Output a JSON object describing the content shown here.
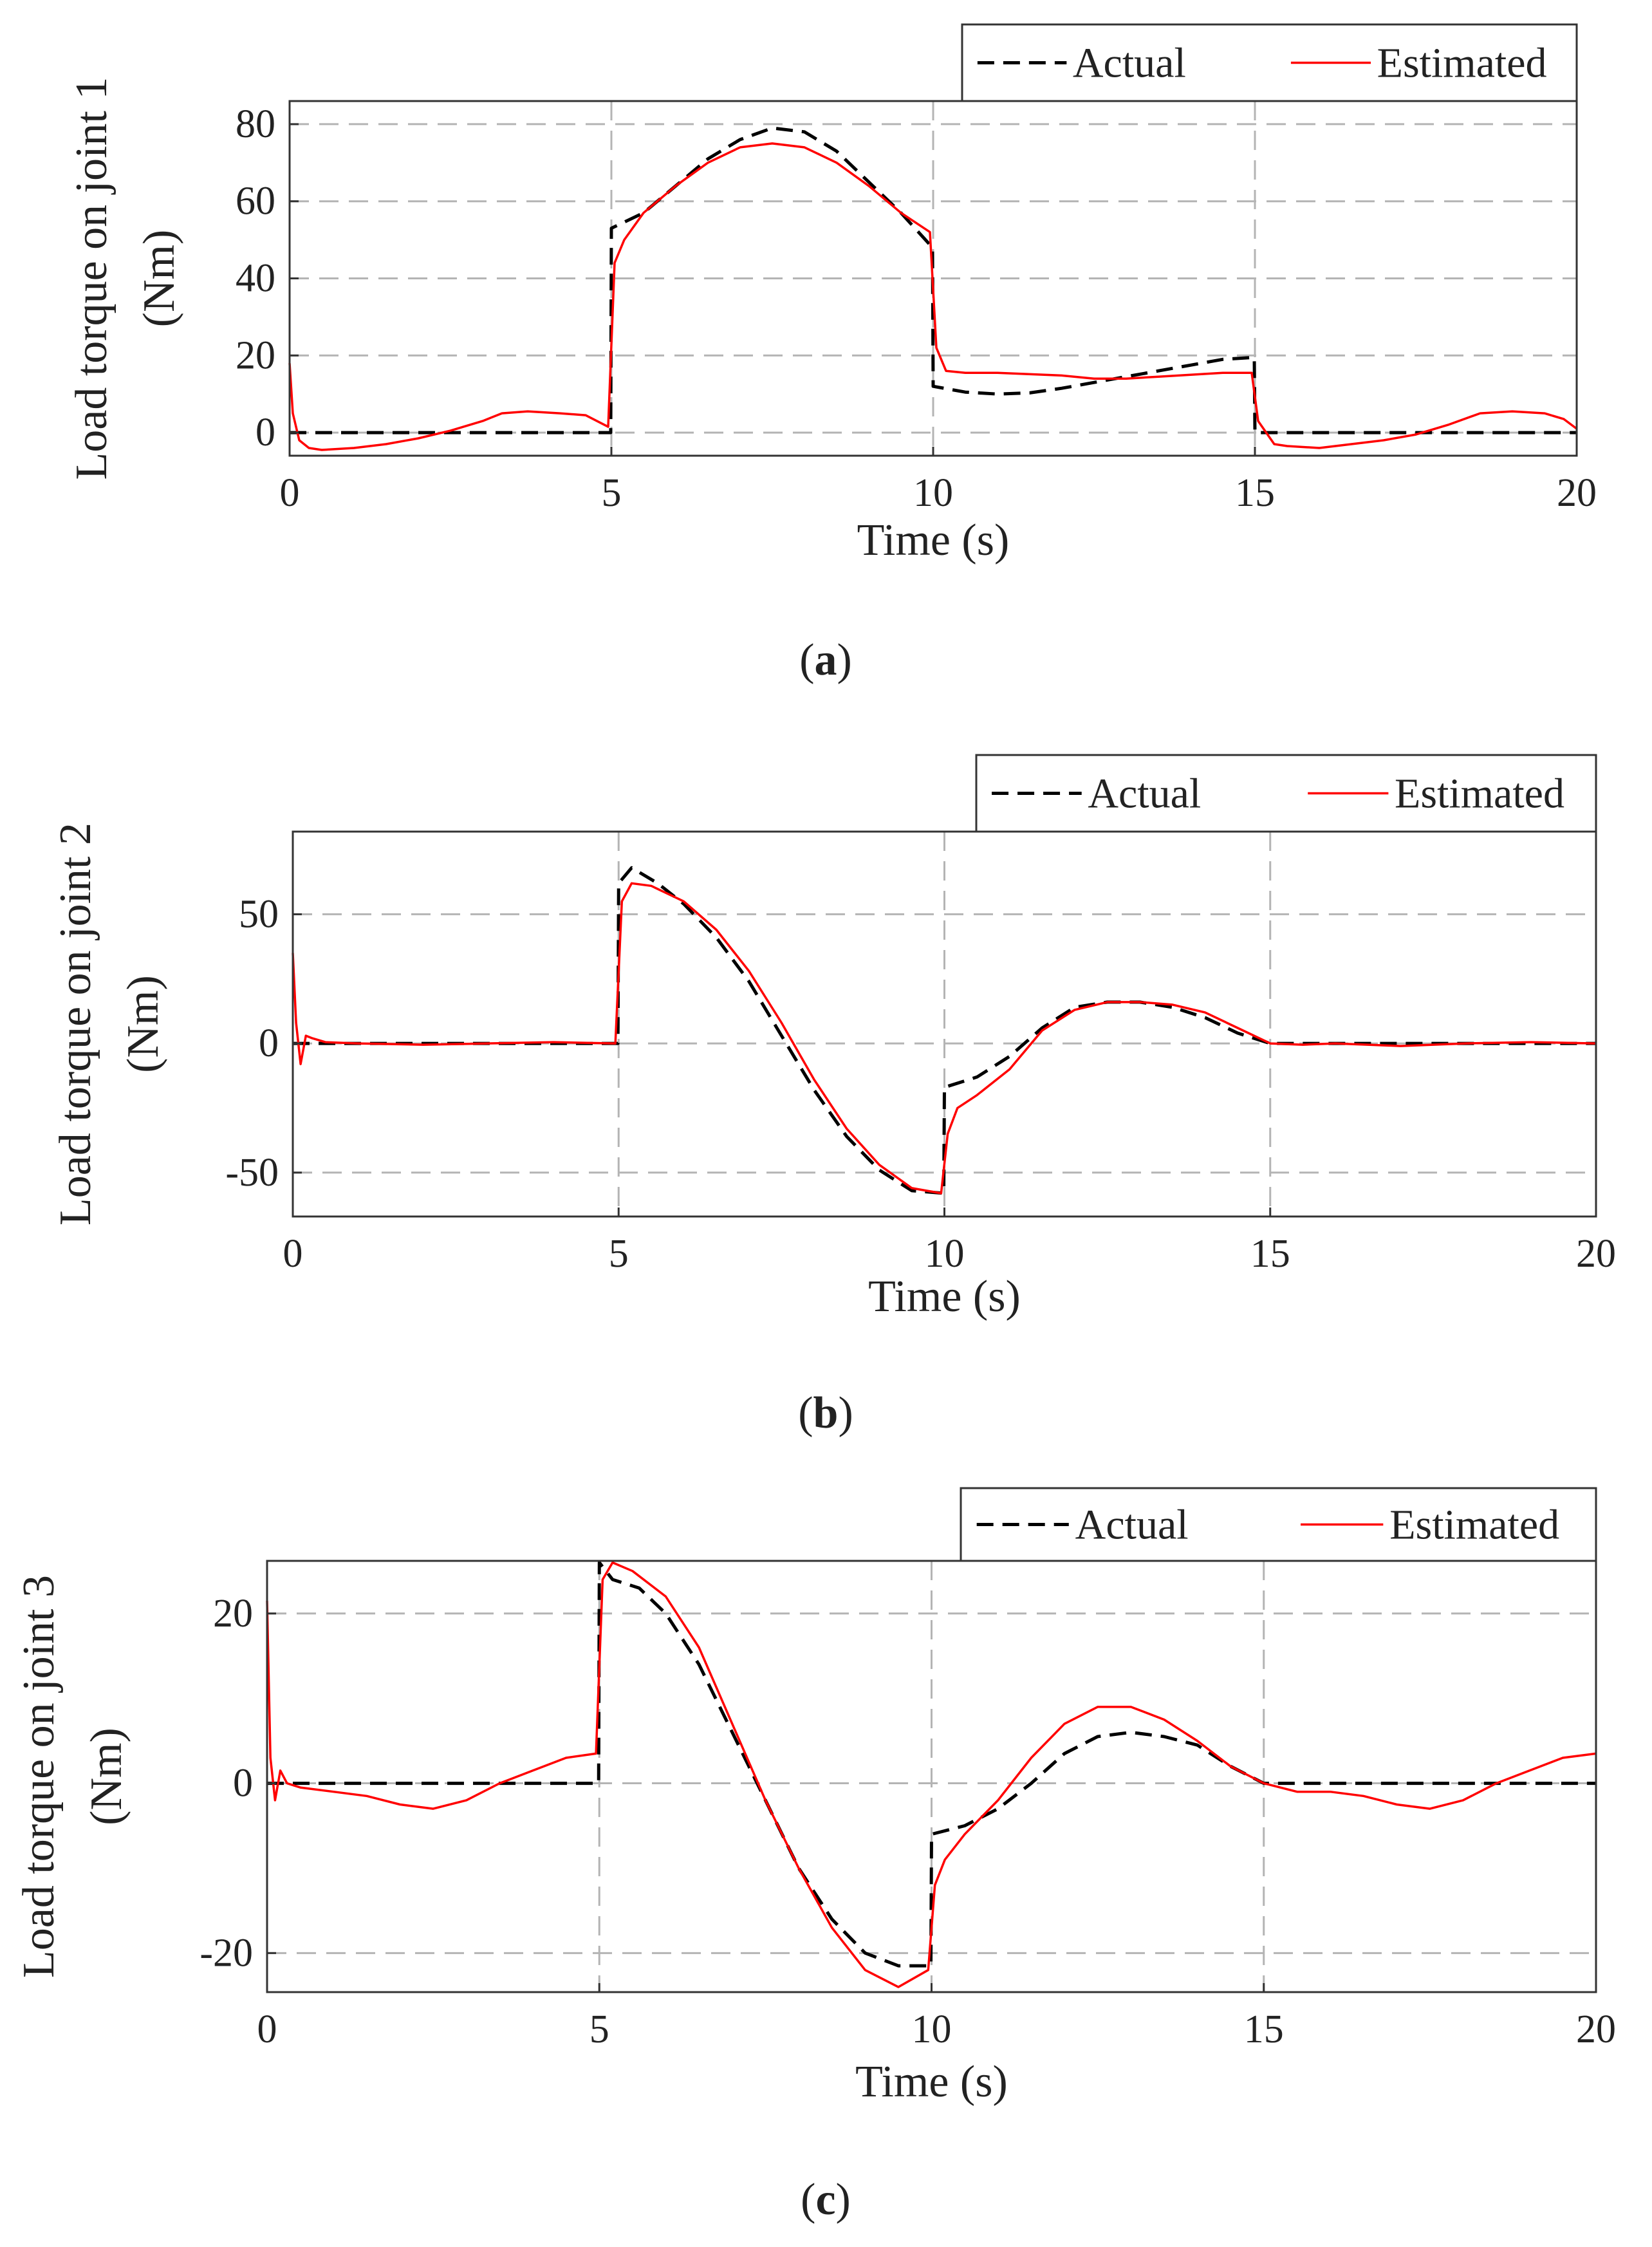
{
  "chart_data": [
    {
      "type": "line",
      "panel": "a",
      "caption_letter": "a",
      "xlabel": "Time (s)",
      "ylabel": [
        "Load torque on joint 1",
        "(Nm)"
      ],
      "xlim": [
        0,
        20
      ],
      "ylim": [
        -6,
        86
      ],
      "xticks": [
        0,
        5,
        10,
        15,
        20
      ],
      "yticks": [
        0,
        20,
        40,
        60,
        80
      ],
      "grid": true,
      "legend_position": "top-right, above axes",
      "series": [
        {
          "name": "Actual",
          "color": "#000000",
          "style": "dashed",
          "x": [
            0,
            4.99,
            5.0,
            5.5,
            6.0,
            6.5,
            7.0,
            7.5,
            8.0,
            8.5,
            9.0,
            9.5,
            9.99,
            10.0,
            10.5,
            11.0,
            11.5,
            12.0,
            12.5,
            13.0,
            13.5,
            14.0,
            14.5,
            14.99,
            15.0,
            20
          ],
          "y": [
            0,
            0,
            53,
            57,
            64,
            71,
            76,
            79,
            78,
            73,
            65,
            57,
            48,
            12,
            10.5,
            10,
            10.3,
            11.5,
            13,
            14.5,
            16,
            17.5,
            19,
            19.5,
            0,
            0
          ]
        },
        {
          "name": "Estimated",
          "color": "#ff0000",
          "style": "solid",
          "x": [
            0,
            0.05,
            0.15,
            0.3,
            0.5,
            1.0,
            1.5,
            2.0,
            2.5,
            3.0,
            3.3,
            3.7,
            4.2,
            4.6,
            4.95,
            5.05,
            5.2,
            5.5,
            6.0,
            6.5,
            7.0,
            7.5,
            8.0,
            8.5,
            9.0,
            9.5,
            9.95,
            10.05,
            10.2,
            10.5,
            11.0,
            12.0,
            12.5,
            13.0,
            13.5,
            14.0,
            14.5,
            14.95,
            15.05,
            15.3,
            15.5,
            16.0,
            16.5,
            17.0,
            17.5,
            18.0,
            18.5,
            19.0,
            19.5,
            19.8,
            20.0
          ],
          "y": [
            18,
            5,
            -2,
            -4,
            -4.5,
            -4,
            -3,
            -1.5,
            0.5,
            3,
            5,
            5.5,
            5,
            4.5,
            1.5,
            44,
            50,
            57,
            64,
            70,
            74,
            75,
            74,
            70,
            64,
            57,
            52,
            22,
            16,
            15.5,
            15.5,
            14.8,
            14,
            14,
            14.5,
            15,
            15.5,
            15.5,
            3,
            -3,
            -3.5,
            -4,
            -3,
            -2,
            -0.5,
            2,
            5,
            5.5,
            5,
            3.5,
            1
          ]
        }
      ]
    },
    {
      "type": "line",
      "panel": "b",
      "caption_letter": "b",
      "xlabel": "Time (s)",
      "ylabel": [
        "Load torque on joint 2",
        "(Nm)"
      ],
      "xlim": [
        0,
        20
      ],
      "ylim": [
        -67,
        82
      ],
      "xticks": [
        0,
        5,
        10,
        15,
        20
      ],
      "yticks": [
        -50,
        0,
        50
      ],
      "grid": true,
      "legend_position": "top-right, above axes",
      "series": [
        {
          "name": "Actual",
          "color": "#000000",
          "style": "dashed",
          "x": [
            0,
            4.99,
            5.0,
            5.2,
            5.6,
            6.0,
            6.5,
            7.0,
            7.5,
            8.0,
            8.5,
            9.0,
            9.5,
            9.99,
            10.0,
            10.5,
            11.0,
            11.5,
            12.0,
            12.5,
            13.0,
            13.5,
            14.0,
            14.5,
            15.0,
            20
          ],
          "y": [
            0,
            0,
            62,
            68,
            62,
            54,
            41,
            24,
            3,
            -18,
            -36,
            -49,
            -57,
            -58,
            -17,
            -13,
            -5,
            6,
            14,
            16,
            16,
            14,
            10,
            4,
            0,
            0
          ]
        },
        {
          "name": "Estimated",
          "color": "#ff0000",
          "style": "solid",
          "x": [
            0,
            0.05,
            0.12,
            0.2,
            0.3,
            0.5,
            1.0,
            2.0,
            3.0,
            4.0,
            4.95,
            5.05,
            5.2,
            5.5,
            6.0,
            6.5,
            7.0,
            7.5,
            8.0,
            8.5,
            9.0,
            9.5,
            9.95,
            10.05,
            10.2,
            10.5,
            11.0,
            11.5,
            12.0,
            12.5,
            13.0,
            13.5,
            14.0,
            14.5,
            15.0,
            15.5,
            16.0,
            17.0,
            18.0,
            19.0,
            20.0
          ],
          "y": [
            35,
            8,
            -8,
            3,
            2,
            0.5,
            0,
            -0.5,
            0,
            0.5,
            0,
            55,
            62,
            61,
            55,
            44,
            28,
            8,
            -14,
            -33,
            -47,
            -56,
            -58,
            -35,
            -25,
            -20,
            -10,
            5,
            13,
            16,
            16,
            15,
            12,
            6,
            0,
            -0.5,
            0,
            -1,
            0,
            0.5,
            0
          ]
        }
      ]
    },
    {
      "type": "line",
      "panel": "c",
      "caption_letter": "c",
      "xlabel": "Time (s)",
      "ylabel": [
        "Load torque on joint 3",
        "(Nm)"
      ],
      "xlim": [
        0,
        20
      ],
      "ylim": [
        -24.6,
        26.2
      ],
      "xticks": [
        0,
        5,
        10,
        15,
        20
      ],
      "yticks": [
        -20,
        0,
        20
      ],
      "grid": true,
      "legend_position": "top-right, above axes",
      "series": [
        {
          "name": "Actual",
          "color": "#000000",
          "style": "dashed",
          "x": [
            0,
            4.99,
            5.0,
            5.2,
            5.6,
            6.0,
            6.5,
            7.0,
            7.5,
            8.0,
            8.5,
            9.0,
            9.5,
            9.99,
            10.0,
            10.5,
            11.0,
            11.5,
            12.0,
            12.5,
            13.0,
            13.5,
            14.0,
            14.5,
            15.0,
            20
          ],
          "y": [
            0,
            0,
            26,
            24,
            23,
            20,
            14,
            6,
            -2,
            -10,
            -16,
            -20,
            -21.5,
            -21.5,
            -6,
            -5,
            -3,
            0,
            3.5,
            5.5,
            6,
            5.5,
            4.5,
            2,
            0,
            0
          ]
        },
        {
          "name": "Estimated",
          "color": "#ff0000",
          "style": "solid",
          "x": [
            0,
            0.05,
            0.12,
            0.2,
            0.3,
            0.5,
            1.0,
            1.5,
            2.0,
            2.5,
            3.0,
            3.5,
            4.0,
            4.5,
            4.95,
            5.05,
            5.2,
            5.5,
            6.0,
            6.5,
            7.0,
            7.5,
            8.0,
            8.5,
            9.0,
            9.5,
            9.95,
            10.05,
            10.2,
            10.5,
            11.0,
            11.5,
            12.0,
            12.5,
            13.0,
            13.5,
            14.0,
            14.5,
            15.0,
            15.5,
            16.0,
            16.5,
            17.0,
            17.5,
            18.0,
            18.5,
            19.0,
            19.5,
            20.0
          ],
          "y": [
            21.5,
            3,
            -2,
            1.5,
            0,
            -0.5,
            -1,
            -1.5,
            -2.5,
            -3,
            -2,
            0,
            1.5,
            3,
            3.5,
            24,
            26,
            25,
            22,
            16,
            7,
            -2,
            -10,
            -17,
            -22,
            -24,
            -22,
            -12,
            -9,
            -6,
            -2,
            3,
            7,
            9,
            9,
            7.5,
            5,
            2,
            0,
            -1,
            -1,
            -1.5,
            -2.5,
            -3,
            -2,
            0,
            1.5,
            3,
            3.5
          ]
        }
      ]
    }
  ]
}
